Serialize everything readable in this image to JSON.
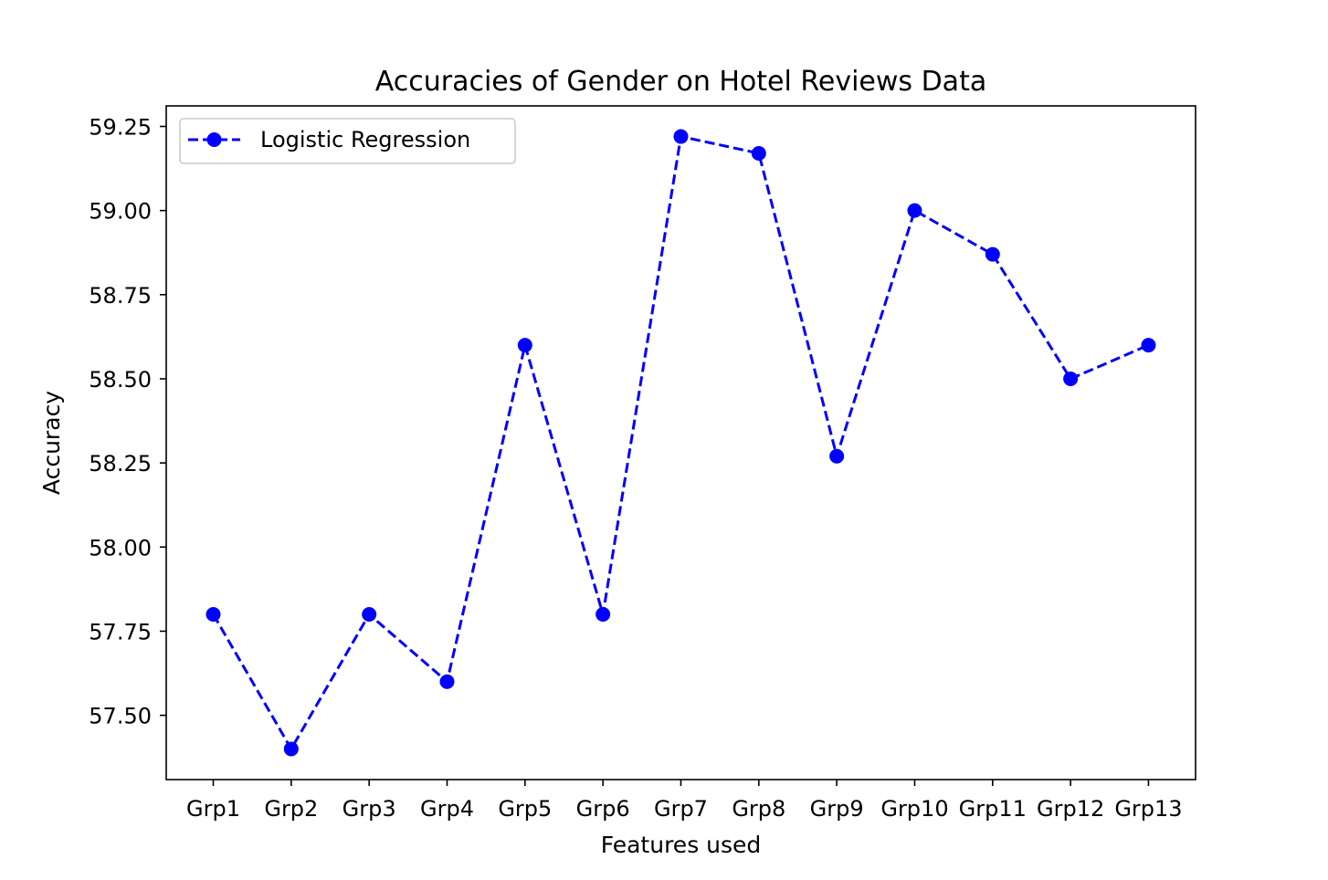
{
  "chart_data": {
    "type": "line",
    "title": "Accuracies of Gender on Hotel Reviews Data",
    "xlabel": "Features used",
    "ylabel": "Accuracy",
    "categories": [
      "Grp1",
      "Grp2",
      "Grp3",
      "Grp4",
      "Grp5",
      "Grp6",
      "Grp7",
      "Grp8",
      "Grp9",
      "Grp10",
      "Grp11",
      "Grp12",
      "Grp13"
    ],
    "series": [
      {
        "name": "Logistic Regression",
        "values": [
          57.8,
          57.4,
          57.8,
          57.6,
          58.6,
          57.8,
          59.22,
          59.17,
          58.27,
          59.0,
          58.87,
          58.5,
          58.6
        ],
        "color": "#0000ff",
        "line_style": "dashed",
        "marker": "circle"
      }
    ],
    "yticks": [
      "57.50",
      "57.75",
      "58.00",
      "58.25",
      "58.50",
      "58.75",
      "59.00",
      "59.25"
    ],
    "ylim": [
      57.309,
      59.311
    ],
    "grid": false,
    "legend_position": "upper-left"
  }
}
